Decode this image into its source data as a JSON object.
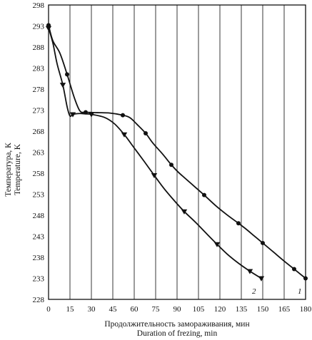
{
  "chart_data": {
    "type": "line",
    "xlabel_ru": "Продолжительность замораживания, мин",
    "xlabel_en": "Duration of frezing, min",
    "ylabel_ru": "Температура, К",
    "ylabel_en": "Temperature, K",
    "xlim": [
      0,
      180
    ],
    "ylim": [
      228,
      298
    ],
    "xticks": [
      "0",
      "15",
      "30",
      "45",
      "60",
      "75",
      "90",
      "105",
      "120",
      "135",
      "150",
      "165",
      "180"
    ],
    "yticks": [
      "228",
      "233",
      "238",
      "243",
      "248",
      "253",
      "258",
      "263",
      "268",
      "273",
      "278",
      "283",
      "288",
      "293",
      "298"
    ],
    "grid": "vertical",
    "series": [
      {
        "name": "1",
        "marker": "circle",
        "x": [
          0,
          3,
          8,
          13,
          18,
          22,
          26,
          34,
          43,
          52,
          57,
          62,
          68,
          73,
          80,
          86,
          91,
          101,
          109,
          117,
          125,
          133,
          138,
          144,
          150,
          157,
          165,
          172,
          180
        ],
        "y": [
          293.2,
          289.5,
          286.5,
          281.5,
          276,
          272.8,
          272.5,
          272.4,
          272.3,
          271.8,
          271.2,
          269.6,
          267.5,
          265.2,
          262.5,
          260,
          258.2,
          255.2,
          252.8,
          250.3,
          248.1,
          246.1,
          244.8,
          243.1,
          241.4,
          239.4,
          237.1,
          235.2,
          233
        ]
      },
      {
        "name": "2",
        "marker": "triangle",
        "x": [
          0,
          3,
          6,
          10,
          13,
          15,
          17,
          22,
          26,
          30,
          39,
          46,
          53,
          60,
          67,
          74,
          81,
          88,
          95,
          103,
          111,
          118,
          125,
          133,
          141,
          149
        ],
        "y": [
          292.5,
          289,
          284,
          279,
          273.8,
          271.6,
          272,
          272.2,
          272.1,
          272,
          271.3,
          269.8,
          267.2,
          264,
          260.8,
          257.5,
          254.3,
          251.5,
          248.9,
          246.3,
          243.5,
          241.1,
          238.8,
          236.6,
          234.7,
          233
        ]
      }
    ],
    "curve_labels": [
      "1",
      "2"
    ]
  }
}
